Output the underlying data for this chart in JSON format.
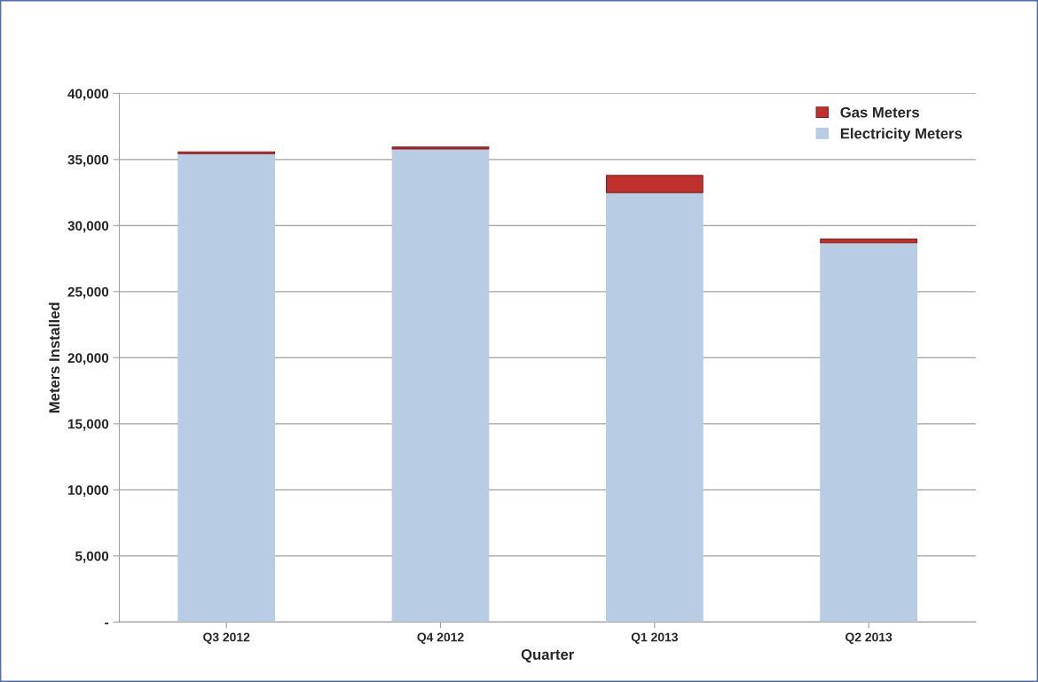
{
  "chart_data": {
    "type": "bar",
    "stacked": true,
    "xlabel": "Quarter",
    "ylabel": "Meters Installed",
    "categories": [
      "Q3 2012",
      "Q4 2012",
      "Q1 2013",
      "Q2 2013"
    ],
    "series": [
      {
        "name": "Electricity Meters",
        "color": "#b8cce4",
        "values": [
          35450,
          35800,
          32500,
          28700
        ]
      },
      {
        "name": "Gas Meters",
        "color": "#c0302c",
        "values": [
          130,
          140,
          1300,
          280
        ]
      }
    ],
    "ylim": [
      0,
      40000
    ],
    "yticks": [
      {
        "value": 0,
        "label": "-"
      },
      {
        "value": 5000,
        "label": "5,000"
      },
      {
        "value": 10000,
        "label": "10,000"
      },
      {
        "value": 15000,
        "label": "15,000"
      },
      {
        "value": 20000,
        "label": "20,000"
      },
      {
        "value": 25000,
        "label": "25,000"
      },
      {
        "value": 30000,
        "label": "30,000"
      },
      {
        "value": 35000,
        "label": "35,000"
      },
      {
        "value": 40000,
        "label": "40,000"
      }
    ],
    "grid": "y",
    "legend": "top right"
  }
}
